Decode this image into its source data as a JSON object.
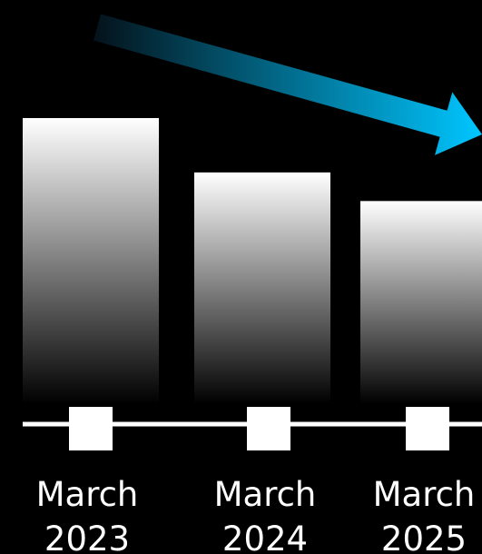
{
  "chart_data": {
    "type": "bar",
    "categories": [
      "March 2023",
      "March 2024",
      "March 2025"
    ],
    "category_lines": [
      [
        "March",
        "2023"
      ],
      [
        "March",
        "2024"
      ],
      [
        "March",
        "2025"
      ]
    ],
    "values": [
      100,
      81,
      71
    ],
    "trend": "decreasing",
    "title": "",
    "xlabel": "",
    "ylabel": "",
    "ylim": [
      0,
      100
    ],
    "grid": false,
    "legend": "none"
  },
  "colors": {
    "background": "#000000",
    "bar_top": "#ffffff",
    "bar_bottom": "#000000",
    "axis": "#ffffff",
    "marker": "#ffffff",
    "label": "#ffffff",
    "arrow_start": "#04121a",
    "arrow_end": "#00c6ff"
  },
  "icons": {
    "trend_arrow": "down-trend-arrow-icon",
    "axis_marker": "square-marker-icon"
  }
}
